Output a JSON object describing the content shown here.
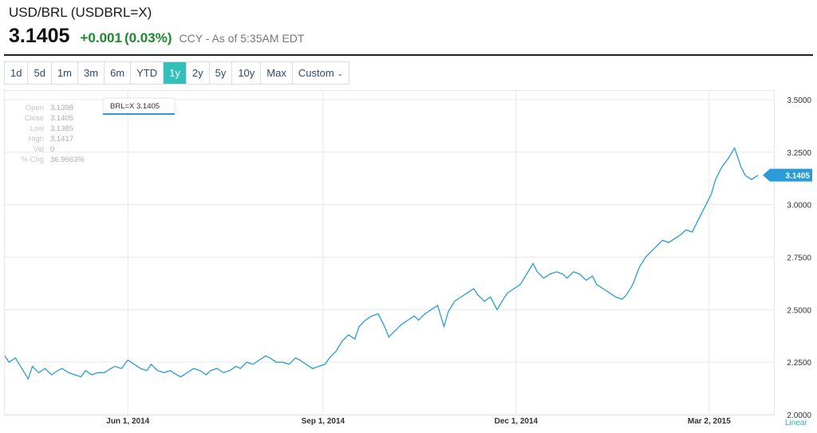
{
  "header": {
    "title": "USD/BRL (USDBRL=X)",
    "price": "3.1405",
    "change": "+0.001",
    "change_pct": "(0.03%)",
    "as_of": "CCY - As of 5:35AM EDT",
    "up_color": "#1a8a2a"
  },
  "ranges": {
    "buttons": [
      "1d",
      "5d",
      "1m",
      "3m",
      "6m",
      "YTD",
      "1y",
      "2y",
      "5y",
      "10y",
      "Max",
      "Custom"
    ],
    "active": "1y"
  },
  "tooltip": {
    "labels": [
      "Open",
      "Close",
      "Low",
      "High",
      "Vol",
      "% Chg"
    ],
    "values": [
      "3.1398",
      "3.1405",
      "3.1385",
      "3.1417",
      "0",
      "36.9663%"
    ],
    "legend": "BRL=X 3.1405"
  },
  "chart_data": {
    "type": "line",
    "scale": "Linear",
    "grid": true,
    "line_color": "#2b9cd8",
    "x_ticks": [
      "Jun 1, 2014",
      "Sep 1, 2014",
      "Dec 1, 2014",
      "Mar 2, 2015"
    ],
    "y_ticks": [
      "3.5000",
      "3.2500",
      "3.0000",
      "2.7500",
      "2.5000",
      "2.2500",
      "2.0000"
    ],
    "ylim": [
      2.0,
      3.5
    ],
    "last_value": "3.1405",
    "series": [
      {
        "x": [
          "2014-04-04",
          "2014-04-06",
          "2014-04-09",
          "2014-04-12",
          "2014-04-15",
          "2014-04-17",
          "2014-04-20",
          "2014-04-23",
          "2014-04-26",
          "2014-04-29",
          "2014-05-01",
          "2014-05-04",
          "2014-05-07",
          "2014-05-10",
          "2014-05-12",
          "2014-05-15",
          "2014-05-18",
          "2014-05-21",
          "2014-05-24",
          "2014-05-26",
          "2014-05-29",
          "2014-06-01",
          "2014-06-04",
          "2014-06-07",
          "2014-06-10",
          "2014-06-12",
          "2014-06-15",
          "2014-06-18",
          "2014-06-21",
          "2014-06-24",
          "2014-06-26",
          "2014-06-29",
          "2014-07-02",
          "2014-07-05",
          "2014-07-08",
          "2014-07-10",
          "2014-07-13",
          "2014-07-16",
          "2014-07-19",
          "2014-07-22",
          "2014-07-24",
          "2014-07-27",
          "2014-07-30",
          "2014-08-02",
          "2014-08-05",
          "2014-08-07",
          "2014-08-10",
          "2014-08-13",
          "2014-08-16",
          "2014-08-19",
          "2014-08-21",
          "2014-08-24",
          "2014-08-27",
          "2014-08-30",
          "2014-09-02",
          "2014-09-04",
          "2014-09-07",
          "2014-09-10",
          "2014-09-13",
          "2014-09-16",
          "2014-09-18",
          "2014-09-21",
          "2014-09-24",
          "2014-09-27",
          "2014-09-30",
          "2014-10-02",
          "2014-10-05",
          "2014-10-08",
          "2014-10-11",
          "2014-10-14",
          "2014-10-16",
          "2014-10-19",
          "2014-10-22",
          "2014-10-25",
          "2014-10-28",
          "2014-10-30",
          "2014-11-02",
          "2014-11-05",
          "2014-11-08",
          "2014-11-11",
          "2014-11-13",
          "2014-11-16",
          "2014-11-19",
          "2014-11-22",
          "2014-11-25",
          "2014-11-27",
          "2014-11-30",
          "2014-12-03",
          "2014-12-06",
          "2014-12-09",
          "2014-12-11",
          "2014-12-14",
          "2014-12-17",
          "2014-12-20",
          "2014-12-23",
          "2014-12-25",
          "2014-12-28",
          "2014-12-31",
          "2015-01-03",
          "2015-01-06",
          "2015-01-08",
          "2015-01-11",
          "2015-01-14",
          "2015-01-17",
          "2015-01-20",
          "2015-01-22",
          "2015-01-25",
          "2015-01-28",
          "2015-01-31",
          "2015-02-03",
          "2015-02-05",
          "2015-02-08",
          "2015-02-11",
          "2015-02-14",
          "2015-02-17",
          "2015-02-19",
          "2015-02-22",
          "2015-02-25",
          "2015-02-28",
          "2015-03-03",
          "2015-03-05",
          "2015-03-08",
          "2015-03-11",
          "2015-03-14",
          "2015-03-17",
          "2015-03-19",
          "2015-03-22",
          "2015-03-25"
        ],
        "values": [
          2.28,
          2.25,
          2.27,
          2.22,
          2.17,
          2.23,
          2.2,
          2.22,
          2.19,
          2.21,
          2.22,
          2.2,
          2.19,
          2.18,
          2.21,
          2.19,
          2.2,
          2.2,
          2.22,
          2.23,
          2.22,
          2.26,
          2.24,
          2.22,
          2.21,
          2.24,
          2.21,
          2.2,
          2.21,
          2.19,
          2.18,
          2.2,
          2.22,
          2.21,
          2.19,
          2.21,
          2.22,
          2.2,
          2.21,
          2.23,
          2.22,
          2.25,
          2.24,
          2.26,
          2.28,
          2.27,
          2.25,
          2.25,
          2.24,
          2.27,
          2.26,
          2.24,
          2.22,
          2.23,
          2.24,
          2.27,
          2.3,
          2.35,
          2.38,
          2.36,
          2.42,
          2.45,
          2.47,
          2.48,
          2.42,
          2.37,
          2.4,
          2.43,
          2.45,
          2.47,
          2.45,
          2.48,
          2.5,
          2.52,
          2.42,
          2.49,
          2.54,
          2.56,
          2.58,
          2.6,
          2.57,
          2.54,
          2.56,
          2.5,
          2.55,
          2.58,
          2.6,
          2.62,
          2.67,
          2.72,
          2.68,
          2.65,
          2.67,
          2.68,
          2.67,
          2.65,
          2.68,
          2.67,
          2.64,
          2.66,
          2.62,
          2.6,
          2.58,
          2.56,
          2.55,
          2.57,
          2.62,
          2.7,
          2.75,
          2.78,
          2.8,
          2.83,
          2.82,
          2.84,
          2.86,
          2.88,
          2.87,
          2.93,
          2.99,
          3.05,
          3.12,
          3.18,
          3.22,
          3.27,
          3.18,
          3.14,
          3.12,
          3.14
        ]
      }
    ]
  }
}
